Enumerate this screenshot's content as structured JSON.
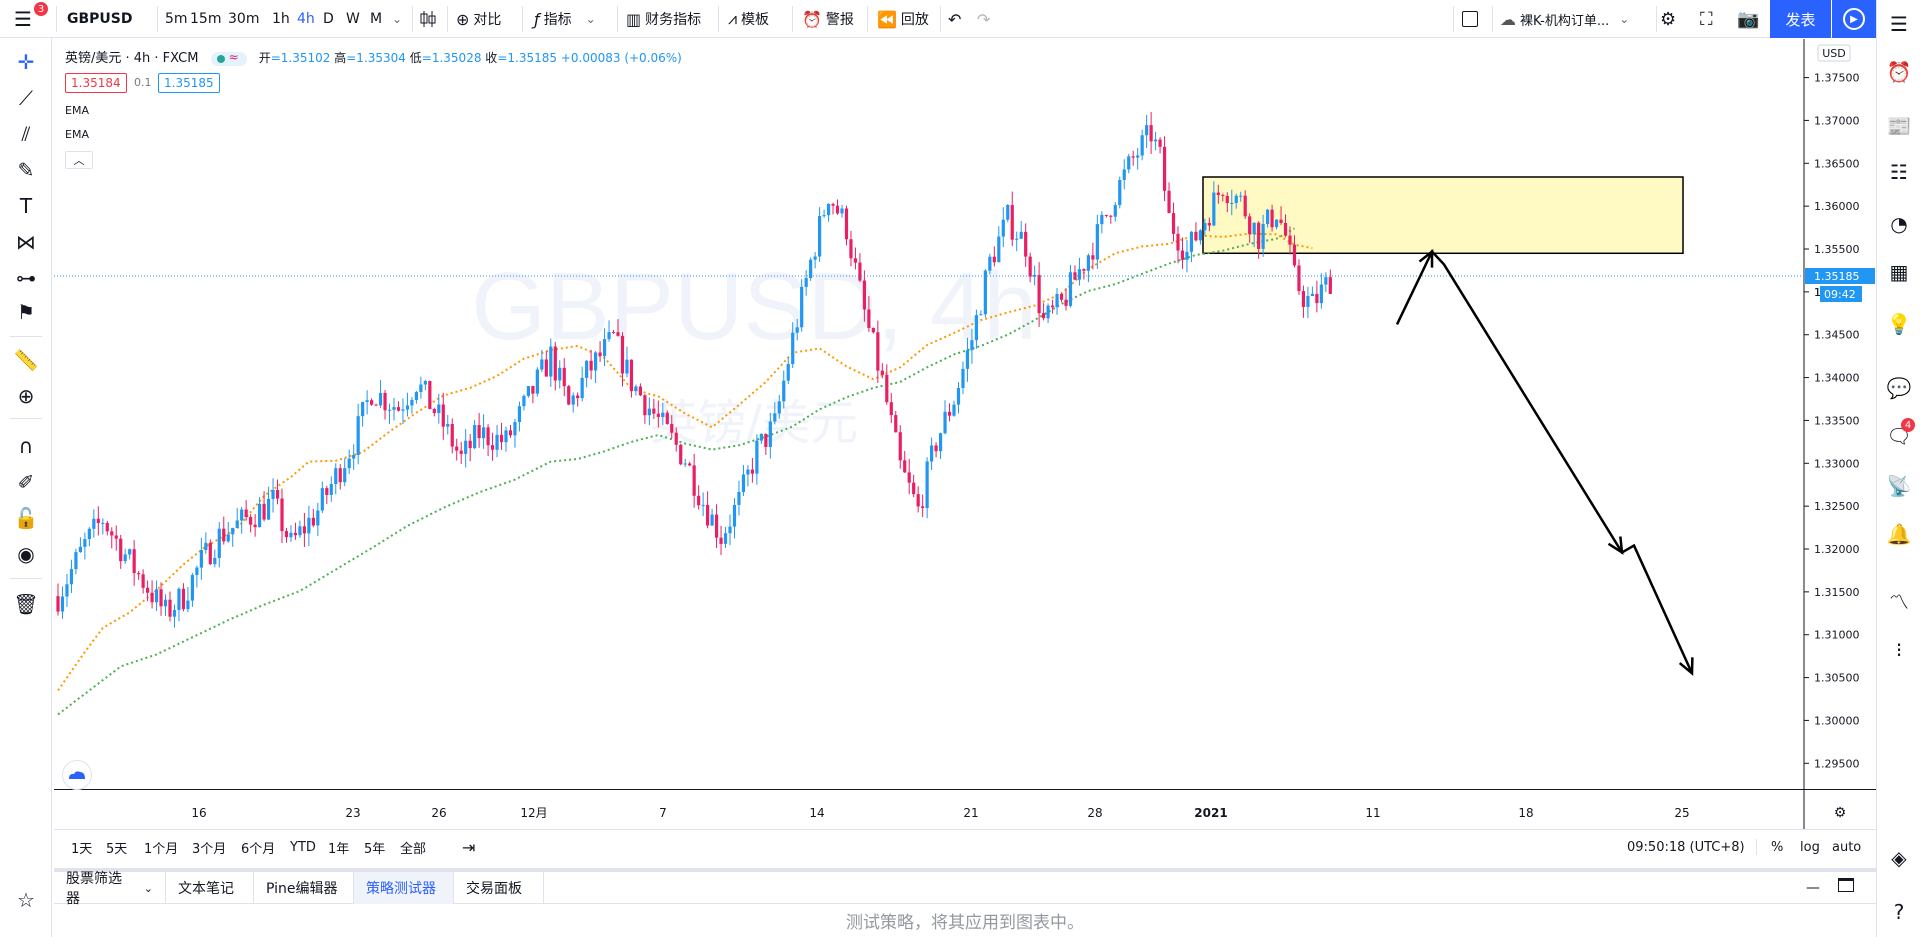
{
  "menu_badge": "3",
  "symbol": "GBPUSD",
  "intervals": [
    "5m",
    "15m",
    "30m",
    "1h",
    "4h",
    "D",
    "W",
    "M"
  ],
  "active_interval": "4h",
  "toolbar": {
    "compare": "对比",
    "indicators": "指标",
    "financials": "财务指标",
    "templates": "模板",
    "alert": "警报",
    "replay": "回放",
    "layout_name": "裸K-机构订单...",
    "publish": "发表"
  },
  "legend": {
    "title": "英镑/美元 · 4h · FXCM",
    "open_label": "开",
    "open": "=1.35102",
    "high_label": "高",
    "high": "=1.35304",
    "low_label": "低",
    "low": "=1.35028",
    "close_label": "收",
    "close": "=1.35185",
    "change": "+0.00083 (+0.06%)",
    "bid": "1.35184",
    "spread": "0.1",
    "ask": "1.35185",
    "indicators": [
      "EMA",
      "EMA"
    ]
  },
  "watermark": {
    "symbol": "GBPUSD, 4h",
    "name": "英镑/美元"
  },
  "price_axis": {
    "currency": "USD",
    "ticks": [
      "1.37500",
      "1.37000",
      "1.36500",
      "1.36000",
      "1.35500",
      "1.35000",
      "1.34500",
      "1.34000",
      "1.33500",
      "1.33000",
      "1.32500",
      "1.32000",
      "1.31500",
      "1.31000",
      "1.30500",
      "1.30000",
      "1.29500"
    ],
    "current_price": "1.35185",
    "countdown": "09:42",
    "partial_label": "1."
  },
  "time_axis": [
    "16",
    "23",
    "26",
    "12月",
    "7",
    "14",
    "21",
    "28",
    "2021",
    "11",
    "18",
    "25"
  ],
  "ranges": [
    "1天",
    "5天",
    "1个月",
    "3个月",
    "6个月",
    "YTD",
    "1年",
    "5年",
    "全部"
  ],
  "clock": "09:50:18 (UTC+8)",
  "scale_options": [
    "%",
    "log",
    "auto"
  ],
  "bottom_tabs": [
    "股票筛选器",
    "文本笔记",
    "Pine编辑器",
    "策略测试器",
    "交易面板"
  ],
  "active_bottom_tab": "策略测试器",
  "panel_message": "测试策略，将其应用到图表中。",
  "notification_count": "4",
  "colors": {
    "up": "#2196f3",
    "down": "#e91e63",
    "ema_fast": "#ff9800",
    "ema_slow": "#4caf50",
    "zone_fill": "#fff9c4",
    "accent": "#2962ff"
  },
  "chart_data": {
    "type": "candlestick",
    "symbol": "GBPUSD",
    "interval": "4h",
    "ylim": [
      1.292,
      1.3795
    ],
    "ema_fast": [
      [
        0,
        1.3035
      ],
      [
        6,
        1.308
      ],
      [
        10,
        1.3108
      ],
      [
        16,
        1.3126
      ],
      [
        22,
        1.3152
      ],
      [
        28,
        1.3182
      ],
      [
        33,
        1.3203
      ],
      [
        40,
        1.3224
      ],
      [
        46,
        1.3262
      ],
      [
        52,
        1.3284
      ],
      [
        56,
        1.3302
      ],
      [
        62,
        1.3303
      ],
      [
        68,
        1.3313
      ],
      [
        74,
        1.3337
      ],
      [
        80,
        1.3359
      ],
      [
        86,
        1.3379
      ],
      [
        92,
        1.3388
      ],
      [
        98,
        1.3402
      ],
      [
        104,
        1.3422
      ],
      [
        110,
        1.3432
      ],
      [
        116,
        1.3437
      ],
      [
        122,
        1.3423
      ],
      [
        128,
        1.3387
      ],
      [
        134,
        1.3378
      ],
      [
        140,
        1.3358
      ],
      [
        146,
        1.3342
      ],
      [
        152,
        1.3368
      ],
      [
        158,
        1.3395
      ],
      [
        164,
        1.3429
      ],
      [
        170,
        1.3434
      ],
      [
        176,
        1.3413
      ],
      [
        182,
        1.3398
      ],
      [
        188,
        1.3412
      ],
      [
        194,
        1.3438
      ],
      [
        200,
        1.3452
      ],
      [
        206,
        1.3467
      ],
      [
        212,
        1.3476
      ],
      [
        218,
        1.3484
      ],
      [
        224,
        1.3498
      ],
      [
        230,
        1.3527
      ],
      [
        236,
        1.3545
      ],
      [
        242,
        1.3553
      ],
      [
        248,
        1.3556
      ],
      [
        254,
        1.3566
      ],
      [
        260,
        1.3564
      ],
      [
        266,
        1.3568
      ],
      [
        272,
        1.3567
      ],
      [
        276,
        1.3555
      ],
      [
        280,
        1.3551
      ]
    ],
    "ema_slow": [
      [
        0,
        1.3007
      ],
      [
        8,
        1.3039
      ],
      [
        14,
        1.3063
      ],
      [
        22,
        1.3077
      ],
      [
        30,
        1.3097
      ],
      [
        38,
        1.3117
      ],
      [
        46,
        1.3135
      ],
      [
        54,
        1.3151
      ],
      [
        62,
        1.3176
      ],
      [
        70,
        1.3201
      ],
      [
        78,
        1.3227
      ],
      [
        86,
        1.3248
      ],
      [
        94,
        1.3266
      ],
      [
        102,
        1.3281
      ],
      [
        110,
        1.3302
      ],
      [
        116,
        1.3305
      ],
      [
        122,
        1.3314
      ],
      [
        128,
        1.3325
      ],
      [
        134,
        1.3333
      ],
      [
        140,
        1.3323
      ],
      [
        146,
        1.3316
      ],
      [
        152,
        1.3321
      ],
      [
        158,
        1.3331
      ],
      [
        164,
        1.3343
      ],
      [
        170,
        1.3363
      ],
      [
        176,
        1.3377
      ],
      [
        182,
        1.3388
      ],
      [
        188,
        1.3395
      ],
      [
        194,
        1.3412
      ],
      [
        200,
        1.3427
      ],
      [
        206,
        1.3437
      ],
      [
        212,
        1.345
      ],
      [
        218,
        1.3467
      ],
      [
        224,
        1.3486
      ],
      [
        230,
        1.3501
      ],
      [
        236,
        1.3509
      ],
      [
        242,
        1.3521
      ],
      [
        248,
        1.3533
      ],
      [
        254,
        1.3543
      ],
      [
        260,
        1.3548
      ],
      [
        266,
        1.3556
      ],
      [
        272,
        1.3562
      ],
      [
        276,
        1.3574
      ]
    ],
    "anchors": [
      [
        0,
        1.3145
      ],
      [
        6,
        1.3205
      ],
      [
        10,
        1.3235
      ],
      [
        16,
        1.3185
      ],
      [
        20,
        1.3155
      ],
      [
        24,
        1.3125
      ],
      [
        28,
        1.3145
      ],
      [
        32,
        1.3185
      ],
      [
        36,
        1.3215
      ],
      [
        42,
        1.3235
      ],
      [
        48,
        1.3255
      ],
      [
        52,
        1.3205
      ],
      [
        58,
        1.3245
      ],
      [
        62,
        1.3285
      ],
      [
        66,
        1.3325
      ],
      [
        70,
        1.3385
      ],
      [
        76,
        1.3365
      ],
      [
        80,
        1.3395
      ],
      [
        86,
        1.3345
      ],
      [
        90,
        1.3305
      ],
      [
        94,
        1.3335
      ],
      [
        100,
        1.3325
      ],
      [
        106,
        1.3385
      ],
      [
        110,
        1.3425
      ],
      [
        114,
        1.3365
      ],
      [
        118,
        1.3405
      ],
      [
        124,
        1.3445
      ],
      [
        128,
        1.3395
      ],
      [
        132,
        1.3365
      ],
      [
        136,
        1.3335
      ],
      [
        140,
        1.3305
      ],
      [
        144,
        1.3255
      ],
      [
        148,
        1.3215
      ],
      [
        152,
        1.3255
      ],
      [
        156,
        1.3315
      ],
      [
        160,
        1.3345
      ],
      [
        164,
        1.3445
      ],
      [
        168,
        1.3535
      ],
      [
        172,
        1.3615
      ],
      [
        176,
        1.3575
      ],
      [
        180,
        1.3475
      ],
      [
        184,
        1.3395
      ],
      [
        188,
        1.3295
      ],
      [
        192,
        1.3245
      ],
      [
        196,
        1.3325
      ],
      [
        200,
        1.3375
      ],
      [
        204,
        1.3445
      ],
      [
        208,
        1.3535
      ],
      [
        212,
        1.3585
      ],
      [
        216,
        1.3555
      ],
      [
        220,
        1.3465
      ],
      [
        224,
        1.3485
      ],
      [
        228,
        1.3525
      ],
      [
        232,
        1.3565
      ],
      [
        236,
        1.3615
      ],
      [
        240,
        1.3655
      ],
      [
        244,
        1.3685
      ],
      [
        246,
        1.3655
      ],
      [
        248,
        1.3585
      ],
      [
        252,
        1.3545
      ],
      [
        256,
        1.3585
      ],
      [
        260,
        1.3625
      ],
      [
        264,
        1.3605
      ],
      [
        268,
        1.3565
      ],
      [
        272,
        1.3595
      ],
      [
        274,
        1.3565
      ],
      [
        276,
        1.3515
      ],
      [
        278,
        1.3495
      ],
      [
        280,
        1.3485
      ],
      [
        284,
        1.3515
      ]
    ]
  }
}
